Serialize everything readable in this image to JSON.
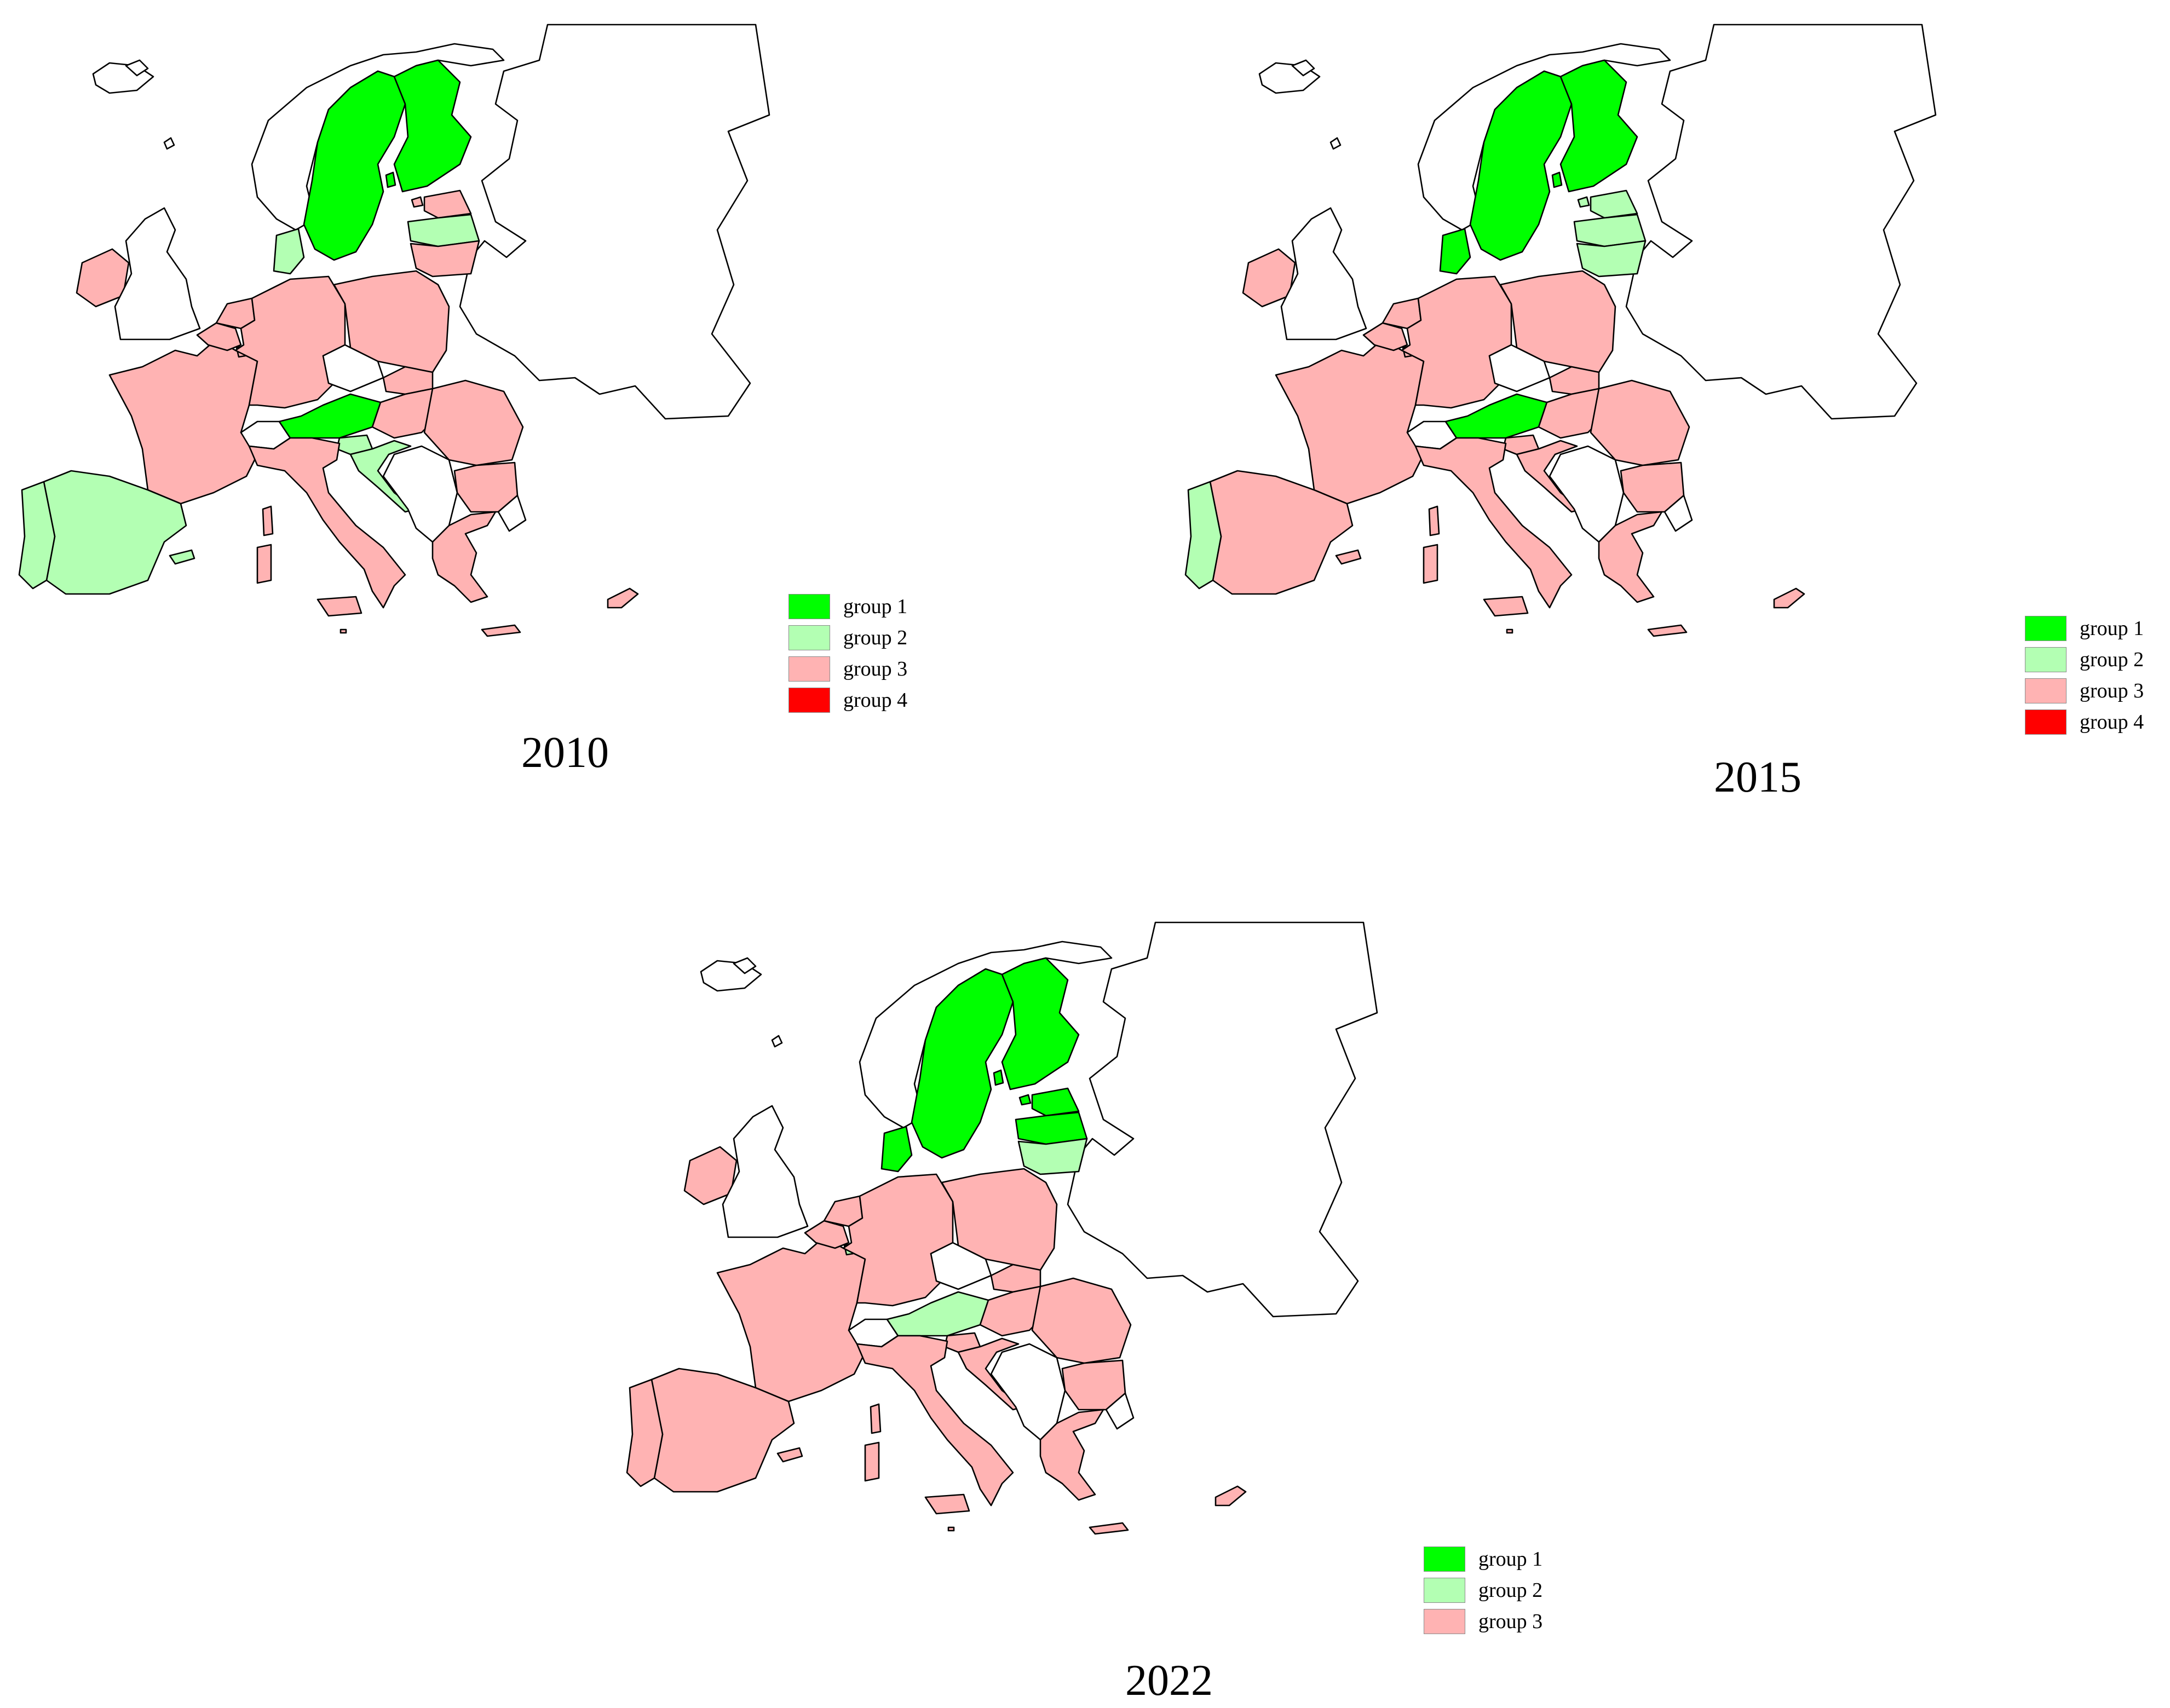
{
  "legend_colors": {
    "group1": "#00ff00",
    "group2": "#b3ffb3",
    "group3": "#ffb3b3",
    "group4": "#ff0000",
    "none": "#ffffff"
  },
  "maps": [
    {
      "year": "2010",
      "legend": [
        {
          "label": "group 1",
          "color": "#00ff00"
        },
        {
          "label": "group 2",
          "color": "#b3ffb3"
        },
        {
          "label": "group 3",
          "color": "#ffb3b3"
        },
        {
          "label": "group 4",
          "color": "#ff0000"
        }
      ],
      "countries": {
        "SE": "group 1",
        "FI": "group 1",
        "AT": "group 1",
        "DK": "group 2",
        "LV": "group 2",
        "ES": "group 2",
        "PT": "group 2",
        "SI": "group 2",
        "HR": "group 2",
        "EE": "group 3",
        "LT": "group 3",
        "IE": "group 3",
        "FR": "group 3",
        "BE": "group 3",
        "NL": "group 3",
        "LU": "group 3",
        "DE": "group 3",
        "PL": "group 3",
        "SK": "group 3",
        "HU": "group 3",
        "RO": "group 3",
        "BG": "group 3",
        "GR": "group 3",
        "IT": "group 3",
        "CY": "group 3",
        "MT": "group 3"
      }
    },
    {
      "year": "2015",
      "legend": [
        {
          "label": "group 1",
          "color": "#00ff00"
        },
        {
          "label": "group 2",
          "color": "#b3ffb3"
        },
        {
          "label": "group 3",
          "color": "#ffb3b3"
        },
        {
          "label": "group 4",
          "color": "#ff0000"
        }
      ],
      "countries": {
        "SE": "group 1",
        "FI": "group 1",
        "DK": "group 1",
        "AT": "group 1",
        "EE": "group 2",
        "LV": "group 2",
        "LT": "group 2",
        "PT": "group 2",
        "IE": "group 3",
        "FR": "group 3",
        "BE": "group 3",
        "NL": "group 3",
        "LU": "group 3",
        "DE": "group 3",
        "PL": "group 3",
        "SK": "group 3",
        "HU": "group 3",
        "RO": "group 3",
        "BG": "group 3",
        "GR": "group 3",
        "IT": "group 3",
        "ES": "group 3",
        "SI": "group 3",
        "HR": "group 3",
        "CY": "group 3",
        "MT": "group 3"
      }
    },
    {
      "year": "2022",
      "legend": [
        {
          "label": "group 1",
          "color": "#00ff00"
        },
        {
          "label": "group 2",
          "color": "#b3ffb3"
        },
        {
          "label": "group 3",
          "color": "#ffb3b3"
        }
      ],
      "countries": {
        "SE": "group 1",
        "FI": "group 1",
        "DK": "group 1",
        "EE": "group 1",
        "LV": "group 1",
        "LT": "group 2",
        "AT": "group 2",
        "LU": "group 2",
        "IE": "group 3",
        "FR": "group 3",
        "BE": "group 3",
        "NL": "group 3",
        "DE": "group 3",
        "PL": "group 3",
        "SK": "group 3",
        "HU": "group 3",
        "RO": "group 3",
        "BG": "group 3",
        "GR": "group 3",
        "IT": "group 3",
        "ES": "group 3",
        "PT": "group 3",
        "SI": "group 3",
        "HR": "group 3",
        "CY": "group 3",
        "MT": "group 3"
      }
    }
  ]
}
